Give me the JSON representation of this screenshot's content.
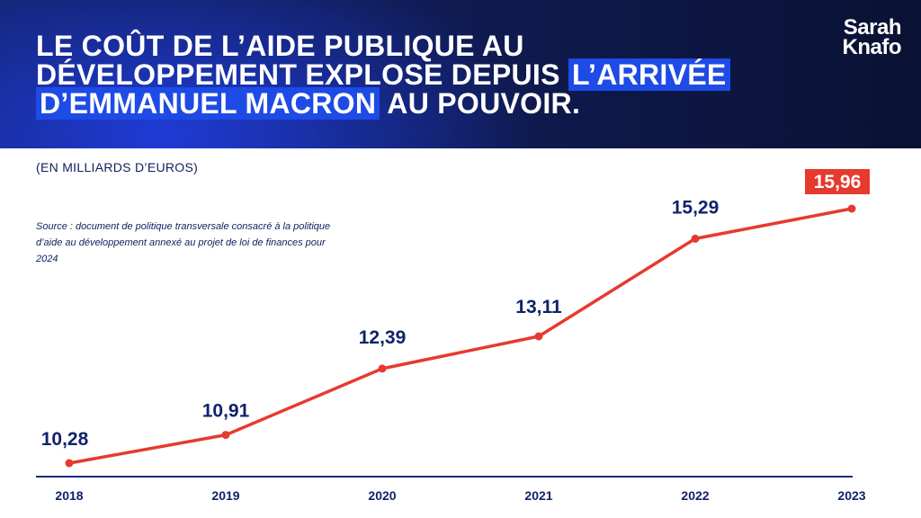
{
  "header": {
    "headline_line1": "LE COÛT DE L’AIDE PUBLIQUE AU",
    "headline_line2_a": "DÉVELOPPEMENT EXPLOSE DEPUIS ",
    "headline_line2_b": "L’ARRIVÉE",
    "headline_line3_a": "D’EMMANUEL MACRON",
    "headline_line3_b": " AU POUVOIR.",
    "logo_line1": "Sarah",
    "logo_line2": "Knafo",
    "highlight_color": "#1e4be6"
  },
  "unit_note": "(EN MILLIARDS D’EUROS)",
  "source_note": "Source : document de politique transversale consacré à la politique d’aide au développement annexé au projet de loi de finances pour 2024",
  "chart_data": {
    "type": "line",
    "categories": [
      "2018",
      "2019",
      "2020",
      "2021",
      "2022",
      "2023"
    ],
    "values": [
      10.28,
      10.91,
      12.39,
      13.11,
      15.29,
      15.96
    ],
    "labels": [
      "10,28",
      "10,91",
      "12,39",
      "13,11",
      "15,29",
      "15,96"
    ],
    "ylim": [
      9.96,
      16.52
    ],
    "line_color": "#e63a2e",
    "axis_color": "#1a2a80",
    "label_color": "#10226b",
    "highlight_last": true
  }
}
